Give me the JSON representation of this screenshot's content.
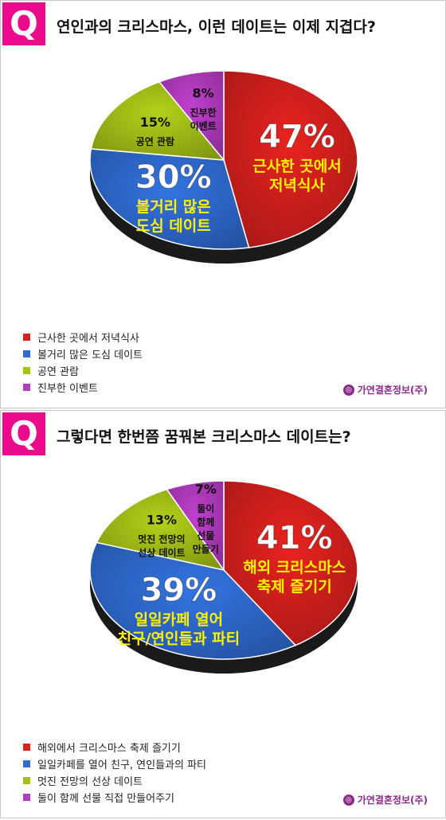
{
  "brand": {
    "name": "가연결혼정보(주)",
    "icon": "brand-logo-icon"
  },
  "colors": {
    "accent": "#ec0a8c",
    "brand": "#8a2b8a"
  },
  "chart_data": [
    {
      "type": "pie",
      "title": "연인과의 크리스마스, 이런 데이트는 이제 지겹다?",
      "badge": "Q",
      "slices": [
        {
          "name": "근사한 곳에서 저녁식사",
          "value": 47,
          "label": "47%",
          "inner": [
            "근사한 곳에서",
            "저녁식사"
          ],
          "color": "#d8201d"
        },
        {
          "name": "볼거리 많은 도심 데이트",
          "value": 30,
          "label": "30%",
          "inner": [
            "볼거리 많은",
            "도심 데이트"
          ],
          "color": "#2f6bd1"
        },
        {
          "name": "공연 관람",
          "value": 15,
          "label": "15%",
          "inner": [
            "공연 관람"
          ],
          "color": "#a5c217"
        },
        {
          "name": "진부한 이벤트",
          "value": 8,
          "label": "8%",
          "inner": [
            "진부한",
            "이벤트"
          ],
          "color": "#b33bc0"
        }
      ]
    },
    {
      "type": "pie",
      "title": "그렇다면 한번쯤 꿈꿔본 크리스마스 데이트는?",
      "badge": "Q",
      "slices": [
        {
          "name": "해외에서 크리스마스 축제 즐기기",
          "value": 41,
          "label": "41%",
          "inner": [
            "해외 크리스마스",
            "축제 즐기기"
          ],
          "color": "#d8201d"
        },
        {
          "name": "일일카페를 열어 친구, 연인들과의 파티",
          "value": 39,
          "label": "39%",
          "inner": [
            "일일카페 열어",
            "친구/연인들과 파티"
          ],
          "color": "#2f6bd1"
        },
        {
          "name": "멋진 전망의 선상 데이트",
          "value": 13,
          "label": "13%",
          "inner": [
            "멋진 전망의",
            "선상 데이트"
          ],
          "color": "#a5c217"
        },
        {
          "name": "둘이 함께 선물 직접 만들어주기",
          "value": 7,
          "label": "7%",
          "inner": [
            "둘이",
            "함께",
            "선물",
            "만들기"
          ],
          "color": "#b33bc0"
        }
      ]
    }
  ]
}
